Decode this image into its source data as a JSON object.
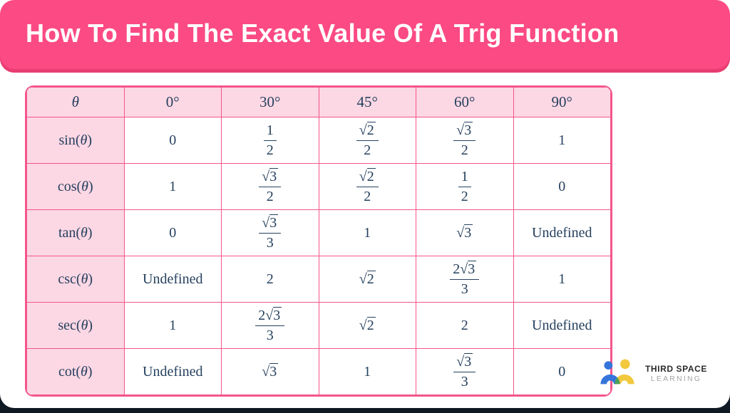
{
  "banner": {
    "title": "How To Find The Exact Value Of A Trig Function"
  },
  "colors": {
    "banner_pink": "#FB4A84",
    "banner_edge_pink": "#E83D72",
    "table_border_pink": "#F4558C",
    "cell_pink_bg": "#FCD7E4",
    "math_navy": "#26415E",
    "footer_dark": "#0F1923",
    "logo_blue": "#3575DB",
    "logo_yellow": "#F2C83D",
    "logo_green": "#4BA05A"
  },
  "table": {
    "header": {
      "theta_symbol": "θ",
      "angles": [
        "0°",
        "30°",
        "45°",
        "60°",
        "90°"
      ]
    },
    "rows": [
      {
        "fn": "sin",
        "arg": "θ",
        "values": [
          {
            "text": "0"
          },
          {
            "frac": {
              "num": {
                "text": "1"
              },
              "den": {
                "text": "2"
              }
            }
          },
          {
            "frac": {
              "num": {
                "sqrt": "2"
              },
              "den": {
                "text": "2"
              }
            }
          },
          {
            "frac": {
              "num": {
                "sqrt": "3"
              },
              "den": {
                "text": "2"
              }
            }
          },
          {
            "text": "1"
          }
        ]
      },
      {
        "fn": "cos",
        "arg": "θ",
        "values": [
          {
            "text": "1"
          },
          {
            "frac": {
              "num": {
                "sqrt": "3"
              },
              "den": {
                "text": "2"
              }
            }
          },
          {
            "frac": {
              "num": {
                "sqrt": "2"
              },
              "den": {
                "text": "2"
              }
            }
          },
          {
            "frac": {
              "num": {
                "text": "1"
              },
              "den": {
                "text": "2"
              }
            }
          },
          {
            "text": "0"
          }
        ]
      },
      {
        "fn": "tan",
        "arg": "θ",
        "values": [
          {
            "text": "0"
          },
          {
            "frac": {
              "num": {
                "sqrt": "3"
              },
              "den": {
                "text": "3"
              }
            }
          },
          {
            "text": "1"
          },
          {
            "sqrt": "3"
          },
          {
            "text": "Undefined"
          }
        ]
      },
      {
        "fn": "csc",
        "arg": "θ",
        "values": [
          {
            "text": "Undefined"
          },
          {
            "text": "2"
          },
          {
            "sqrt": "2"
          },
          {
            "frac": {
              "num": {
                "coef": "2",
                "sqrt": "3"
              },
              "den": {
                "text": "3"
              }
            }
          },
          {
            "text": "1"
          }
        ]
      },
      {
        "fn": "sec",
        "arg": "θ",
        "values": [
          {
            "text": "1"
          },
          {
            "frac": {
              "num": {
                "coef": "2",
                "sqrt": "3"
              },
              "den": {
                "text": "3"
              }
            }
          },
          {
            "sqrt": "2"
          },
          {
            "text": "2"
          },
          {
            "text": "Undefined"
          }
        ]
      },
      {
        "fn": "cot",
        "arg": "θ",
        "values": [
          {
            "text": "Undefined"
          },
          {
            "sqrt": "3"
          },
          {
            "text": "1"
          },
          {
            "frac": {
              "num": {
                "sqrt": "3"
              },
              "den": {
                "text": "3"
              }
            }
          },
          {
            "text": "0"
          }
        ]
      }
    ]
  },
  "logo": {
    "line1": "THIRD SPACE",
    "line2": "LEARNING"
  }
}
